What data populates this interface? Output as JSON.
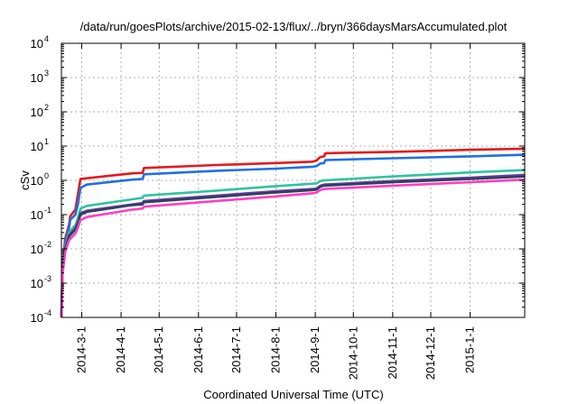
{
  "chart_data": {
    "type": "line",
    "title": "/data/run/goesPlots/archive/2015-02-13/flux/../bryn/366daysMarsAccumulated.plot",
    "xlabel": "Coordinated Universal Time (UTC)",
    "ylabel": "cSv",
    "yscale": "log",
    "ylim": [
      0.0001,
      10000
    ],
    "xlim": [
      "2014-02-13",
      "2015-02-13"
    ],
    "grid": true,
    "y_ticks": [
      {
        "base": "10",
        "exp": "-4",
        "value": 0.0001
      },
      {
        "base": "10",
        "exp": "-3",
        "value": 0.001
      },
      {
        "base": "10",
        "exp": "-2",
        "value": 0.01
      },
      {
        "base": "10",
        "exp": "-1",
        "value": 0.1
      },
      {
        "base": "10",
        "exp": "0",
        "value": 1
      },
      {
        "base": "10",
        "exp": "1",
        "value": 10
      },
      {
        "base": "10",
        "exp": "2",
        "value": 100
      },
      {
        "base": "10",
        "exp": "3",
        "value": 1000
      },
      {
        "base": "10",
        "exp": "4",
        "value": 10000
      }
    ],
    "x_ticks": [
      {
        "label": "2014-3-1",
        "date": "2014-03-01"
      },
      {
        "label": "2014-4-1",
        "date": "2014-04-01"
      },
      {
        "label": "2014-5-1",
        "date": "2014-05-01"
      },
      {
        "label": "2014-6-1",
        "date": "2014-06-01"
      },
      {
        "label": "2014-7-1",
        "date": "2014-07-01"
      },
      {
        "label": "2014-8-1",
        "date": "2014-08-01"
      },
      {
        "label": "2014-9-1",
        "date": "2014-09-01"
      },
      {
        "label": "2014-10-1",
        "date": "2014-10-01"
      },
      {
        "label": "2014-11-1",
        "date": "2014-11-01"
      },
      {
        "label": "2014-12-1",
        "date": "2014-12-01"
      },
      {
        "label": "2015-1-1",
        "date": "2015-01-01"
      }
    ],
    "series": [
      {
        "color": "#e41a1c",
        "points": [
          [
            "2014-02-13",
            0.0001
          ],
          [
            "2014-02-14",
            0.004
          ],
          [
            "2014-02-16",
            0.02
          ],
          [
            "2014-02-19",
            0.05
          ],
          [
            "2014-02-20",
            0.09
          ],
          [
            "2014-02-24",
            0.14
          ],
          [
            "2014-02-26",
            0.4
          ],
          [
            "2014-02-28",
            1.1
          ],
          [
            "2014-04-10",
            1.6
          ],
          [
            "2014-04-18",
            1.65
          ],
          [
            "2014-04-19",
            2.3
          ],
          [
            "2014-06-15",
            2.8
          ],
          [
            "2014-08-01",
            3.2
          ],
          [
            "2014-08-30",
            3.5
          ],
          [
            "2014-09-02",
            3.8
          ],
          [
            "2014-09-05",
            4.8
          ],
          [
            "2014-09-08",
            5.0
          ],
          [
            "2014-09-09",
            6.2
          ],
          [
            "2014-11-01",
            6.8
          ],
          [
            "2015-01-01",
            7.8
          ],
          [
            "2015-02-13",
            8.4
          ]
        ]
      },
      {
        "color": "#1f6fe5",
        "points": [
          [
            "2014-02-13",
            0.0001
          ],
          [
            "2014-02-14",
            0.004
          ],
          [
            "2014-02-16",
            0.015
          ],
          [
            "2014-02-19",
            0.04
          ],
          [
            "2014-02-20",
            0.07
          ],
          [
            "2014-02-24",
            0.1
          ],
          [
            "2014-02-26",
            0.2
          ],
          [
            "2014-02-28",
            0.6
          ],
          [
            "2014-03-05",
            0.75
          ],
          [
            "2014-04-10",
            1.05
          ],
          [
            "2014-04-18",
            1.1
          ],
          [
            "2014-04-19",
            1.5
          ],
          [
            "2014-06-15",
            1.9
          ],
          [
            "2014-08-01",
            2.2
          ],
          [
            "2014-08-30",
            2.5
          ],
          [
            "2014-09-02",
            2.6
          ],
          [
            "2014-09-05",
            3.1
          ],
          [
            "2014-09-08",
            3.2
          ],
          [
            "2014-09-09",
            3.9
          ],
          [
            "2014-11-01",
            4.4
          ],
          [
            "2015-01-01",
            5.0
          ],
          [
            "2015-02-13",
            5.6
          ]
        ]
      },
      {
        "color": "#2ec4a0",
        "points": [
          [
            "2014-02-13",
            0.0001
          ],
          [
            "2014-02-14",
            0.003
          ],
          [
            "2014-02-16",
            0.012
          ],
          [
            "2014-02-19",
            0.03
          ],
          [
            "2014-02-24",
            0.05
          ],
          [
            "2014-02-26",
            0.08
          ],
          [
            "2014-02-28",
            0.15
          ],
          [
            "2014-03-05",
            0.18
          ],
          [
            "2014-04-10",
            0.28
          ],
          [
            "2014-04-18",
            0.31
          ],
          [
            "2014-04-19",
            0.36
          ],
          [
            "2014-06-15",
            0.5
          ],
          [
            "2014-08-01",
            0.68
          ],
          [
            "2014-08-30",
            0.8
          ],
          [
            "2014-09-02",
            0.82
          ],
          [
            "2014-09-05",
            0.95
          ],
          [
            "2014-09-08",
            1.0
          ],
          [
            "2014-11-01",
            1.3
          ],
          [
            "2015-01-01",
            1.7
          ],
          [
            "2015-02-13",
            2.0
          ]
        ]
      },
      {
        "color": "#6a3d9a",
        "points": [
          [
            "2014-02-13",
            0.0001
          ],
          [
            "2014-02-14",
            0.003
          ],
          [
            "2014-02-16",
            0.01
          ],
          [
            "2014-02-19",
            0.025
          ],
          [
            "2014-02-24",
            0.04
          ],
          [
            "2014-02-26",
            0.06
          ],
          [
            "2014-02-28",
            0.11
          ],
          [
            "2014-03-05",
            0.13
          ],
          [
            "2014-04-10",
            0.2
          ],
          [
            "2014-04-18",
            0.22
          ],
          [
            "2014-04-19",
            0.25
          ],
          [
            "2014-06-15",
            0.36
          ],
          [
            "2014-08-01",
            0.48
          ],
          [
            "2014-08-30",
            0.56
          ],
          [
            "2014-09-02",
            0.58
          ],
          [
            "2014-09-05",
            0.7
          ],
          [
            "2014-09-08",
            0.75
          ],
          [
            "2014-11-01",
            0.95
          ],
          [
            "2015-01-01",
            1.2
          ],
          [
            "2015-02-13",
            1.45
          ]
        ]
      },
      {
        "color": "#2f3f63",
        "points": [
          [
            "2014-02-13",
            0.0001
          ],
          [
            "2014-02-14",
            0.003
          ],
          [
            "2014-02-16",
            0.01
          ],
          [
            "2014-02-19",
            0.023
          ],
          [
            "2014-02-24",
            0.037
          ],
          [
            "2014-02-26",
            0.055
          ],
          [
            "2014-02-28",
            0.1
          ],
          [
            "2014-03-05",
            0.12
          ],
          [
            "2014-04-10",
            0.19
          ],
          [
            "2014-04-18",
            0.2
          ],
          [
            "2014-04-19",
            0.23
          ],
          [
            "2014-06-15",
            0.33
          ],
          [
            "2014-08-01",
            0.44
          ],
          [
            "2014-08-30",
            0.52
          ],
          [
            "2014-09-02",
            0.54
          ],
          [
            "2014-09-05",
            0.65
          ],
          [
            "2014-09-08",
            0.7
          ],
          [
            "2014-11-01",
            0.88
          ],
          [
            "2015-01-01",
            1.1
          ],
          [
            "2015-02-13",
            1.3
          ]
        ]
      },
      {
        "color": "#ff3fbf",
        "points": [
          [
            "2014-02-13",
            0.0001
          ],
          [
            "2014-02-14",
            0.002
          ],
          [
            "2014-02-16",
            0.008
          ],
          [
            "2014-02-19",
            0.018
          ],
          [
            "2014-02-24",
            0.028
          ],
          [
            "2014-02-26",
            0.042
          ],
          [
            "2014-02-28",
            0.07
          ],
          [
            "2014-03-05",
            0.085
          ],
          [
            "2014-04-10",
            0.14
          ],
          [
            "2014-04-18",
            0.15
          ],
          [
            "2014-04-19",
            0.17
          ],
          [
            "2014-06-15",
            0.25
          ],
          [
            "2014-08-01",
            0.34
          ],
          [
            "2014-08-30",
            0.42
          ],
          [
            "2014-09-02",
            0.44
          ],
          [
            "2014-09-05",
            0.52
          ],
          [
            "2014-09-08",
            0.56
          ],
          [
            "2014-11-01",
            0.7
          ],
          [
            "2015-01-01",
            0.88
          ],
          [
            "2015-02-13",
            1.05
          ]
        ]
      }
    ]
  }
}
